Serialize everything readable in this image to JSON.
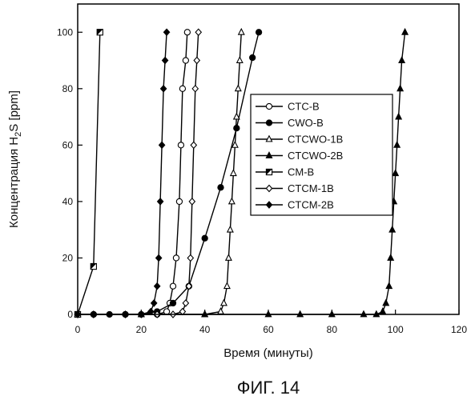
{
  "chart_data": {
    "type": "line",
    "caption": "ФИГ. 14",
    "xlabel": "Время (минуты)",
    "ylabel_parts": [
      "Концентрация H",
      "2",
      "S [ppm]"
    ],
    "xlim": [
      0,
      120
    ],
    "ylim": [
      0,
      110
    ],
    "xticks": [
      0,
      20,
      40,
      60,
      80,
      100,
      120
    ],
    "yticks": [
      0,
      20,
      40,
      60,
      80,
      100
    ],
    "grid": false,
    "legend_position": "right-middle",
    "series": [
      {
        "name": "CTC-B",
        "marker": "circle-open",
        "points": [
          [
            0,
            0
          ],
          [
            5,
            0
          ],
          [
            15,
            0
          ],
          [
            25,
            0
          ],
          [
            28,
            1
          ],
          [
            29,
            4
          ],
          [
            30,
            10
          ],
          [
            31,
            20
          ],
          [
            32,
            40
          ],
          [
            32.5,
            60
          ],
          [
            33,
            80
          ],
          [
            34,
            90
          ],
          [
            34.5,
            100
          ]
        ]
      },
      {
        "name": "CWO-B",
        "marker": "circle-filled",
        "points": [
          [
            0,
            0
          ],
          [
            5,
            0
          ],
          [
            10,
            0
          ],
          [
            15,
            0
          ],
          [
            20,
            0
          ],
          [
            25,
            1
          ],
          [
            30,
            4
          ],
          [
            35,
            10
          ],
          [
            40,
            27
          ],
          [
            45,
            45
          ],
          [
            50,
            66
          ],
          [
            55,
            91
          ],
          [
            57,
            100
          ]
        ]
      },
      {
        "name": "CTCWO-1B",
        "marker": "triangle-open",
        "points": [
          [
            0,
            0
          ],
          [
            20,
            0
          ],
          [
            40,
            0
          ],
          [
            45,
            1
          ],
          [
            46,
            4
          ],
          [
            47,
            10
          ],
          [
            47.5,
            20
          ],
          [
            48,
            30
          ],
          [
            48.5,
            40
          ],
          [
            49,
            50
          ],
          [
            49.5,
            60
          ],
          [
            50,
            70
          ],
          [
            50.5,
            80
          ],
          [
            51,
            90
          ],
          [
            51.5,
            100
          ]
        ]
      },
      {
        "name": "CTCWO-2B",
        "marker": "triangle-filled",
        "points": [
          [
            0,
            0
          ],
          [
            20,
            0
          ],
          [
            40,
            0
          ],
          [
            60,
            0
          ],
          [
            70,
            0
          ],
          [
            80,
            0
          ],
          [
            90,
            0
          ],
          [
            94,
            0
          ],
          [
            96,
            1
          ],
          [
            97,
            4
          ],
          [
            98,
            10
          ],
          [
            98.5,
            20
          ],
          [
            99,
            30
          ],
          [
            99.5,
            40
          ],
          [
            100,
            50
          ],
          [
            100.5,
            60
          ],
          [
            101,
            70
          ],
          [
            101.5,
            80
          ],
          [
            102,
            90
          ],
          [
            103,
            100
          ]
        ]
      },
      {
        "name": "CM-B",
        "marker": "square-half",
        "points": [
          [
            0,
            0
          ],
          [
            5,
            17
          ],
          [
            7,
            100
          ]
        ]
      },
      {
        "name": "CTCM-1B",
        "marker": "diamond-open",
        "points": [
          [
            0,
            0
          ],
          [
            5,
            0
          ],
          [
            15,
            0
          ],
          [
            25,
            0
          ],
          [
            30,
            0
          ],
          [
            33,
            1
          ],
          [
            34,
            4
          ],
          [
            35,
            10
          ],
          [
            35.5,
            20
          ],
          [
            36,
            40
          ],
          [
            36.5,
            60
          ],
          [
            37,
            80
          ],
          [
            37.5,
            90
          ],
          [
            38,
            100
          ]
        ]
      },
      {
        "name": "CTCM-2B",
        "marker": "diamond-filled",
        "points": [
          [
            0,
            0
          ],
          [
            5,
            0
          ],
          [
            15,
            0
          ],
          [
            20,
            0
          ],
          [
            23,
            1
          ],
          [
            24,
            4
          ],
          [
            25,
            10
          ],
          [
            25.5,
            20
          ],
          [
            26,
            40
          ],
          [
            26.5,
            60
          ],
          [
            27,
            80
          ],
          [
            27.5,
            90
          ],
          [
            28,
            100
          ]
        ]
      }
    ]
  }
}
